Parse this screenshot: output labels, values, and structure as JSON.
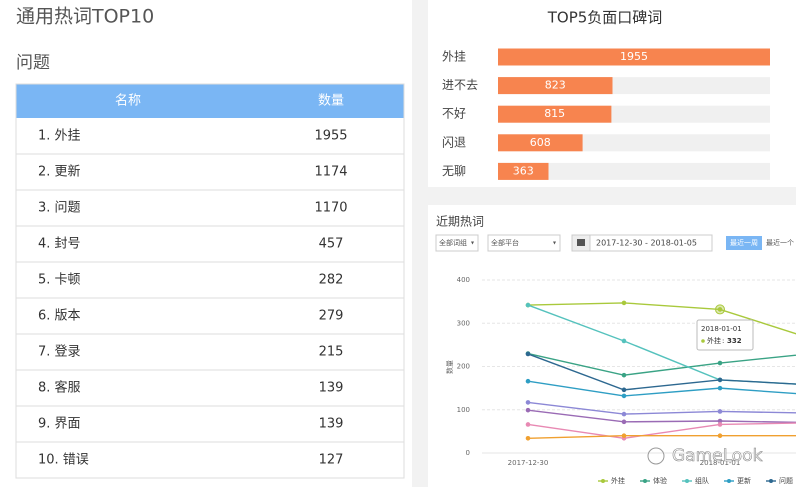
{
  "header": {
    "title": "通用热词TOP10"
  },
  "table": {
    "title": "问题",
    "columns": [
      "名称",
      "数量"
    ],
    "rows": [
      [
        "1. 外挂",
        1955
      ],
      [
        "2. 更新",
        1174
      ],
      [
        "3. 问题",
        1170
      ],
      [
        "4. 封号",
        457
      ],
      [
        "5. 卡顿",
        282
      ],
      [
        "6. 版本",
        279
      ],
      [
        "7. 登录",
        215
      ],
      [
        "8. 客服",
        139
      ],
      [
        "9. 界面",
        139
      ],
      [
        "10. 错误",
        127
      ]
    ]
  },
  "chart_data": [
    {
      "type": "bar",
      "orientation": "horizontal",
      "title": "TOP5负面口碑词",
      "categories": [
        "外挂",
        "进不去",
        "不好",
        "闪退",
        "无聊"
      ],
      "values": [
        1955,
        823,
        815,
        608,
        363
      ],
      "color": "#f7844f",
      "track_color": "#f0f0f0",
      "xlim": [
        0,
        1955
      ]
    },
    {
      "type": "line",
      "title": "近期热词",
      "controls": {
        "group": "全部词组",
        "platform": "全部平台",
        "date_range": "2017-12-30 - 2018-01-05",
        "week": "最近一周",
        "other": "最近一个"
      },
      "ylabel": "数量",
      "ylim": [
        0,
        400
      ],
      "yticks": [
        0,
        100,
        200,
        300,
        400
      ],
      "grid": true,
      "categories": [
        "2017-12-30",
        null,
        "2018-01-01",
        null
      ],
      "series": [
        {
          "name": "外挂",
          "color": "#a9c93c",
          "values": [
            342,
            347,
            332,
            261
          ]
        },
        {
          "name": "体验",
          "color": "#3aa385",
          "values": [
            230,
            180,
            208,
            231
          ]
        },
        {
          "name": "组队",
          "color": "#55c2bd",
          "values": [
            342,
            259,
            169,
            157
          ]
        },
        {
          "name": "更新",
          "color": "#2e9ec4",
          "values": [
            166,
            132,
            150,
            134
          ]
        },
        {
          "name": "问题",
          "color": "#2d6890",
          "values": [
            229,
            146,
            169,
            157
          ]
        },
        {
          "color": "#8c88d6",
          "values": [
            117,
            90,
            96,
            92
          ]
        },
        {
          "color": "#9a6bb5",
          "values": [
            99,
            72,
            74,
            70
          ]
        },
        {
          "color": "#e889b3",
          "values": [
            66,
            34,
            66,
            70
          ]
        },
        {
          "color": "#f0a030",
          "values": [
            34,
            40,
            40,
            40
          ]
        }
      ],
      "tooltip": {
        "category": 2,
        "series": 0
      },
      "watermark": "GameLook"
    }
  ]
}
